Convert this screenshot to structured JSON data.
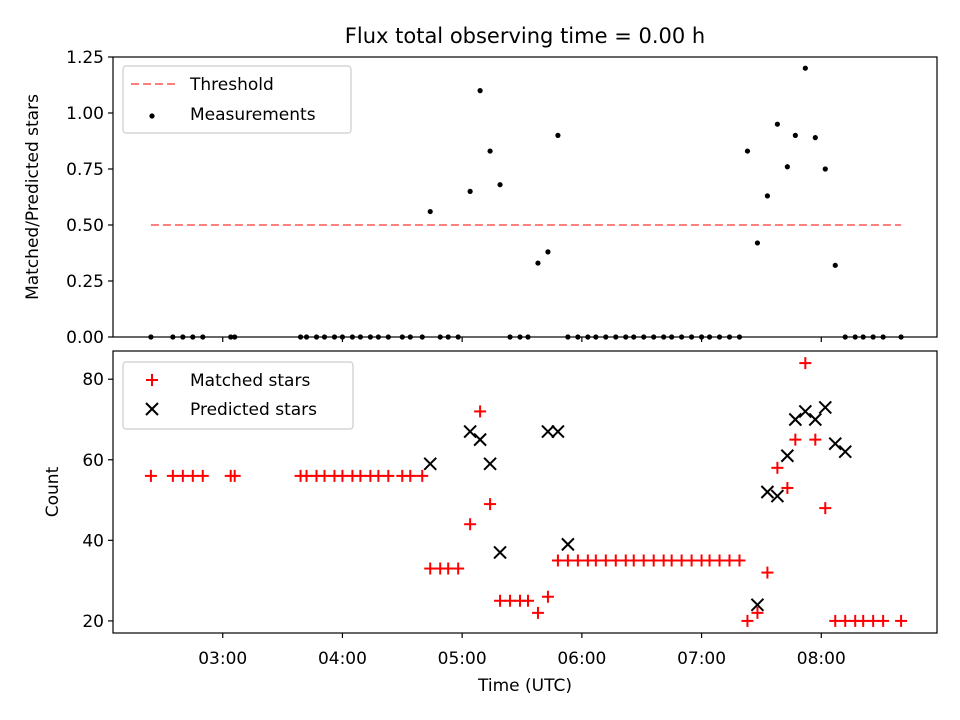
{
  "title": "Flux total observing time = 0.00 h",
  "xlabel": "Time (UTC)",
  "chart_data": [
    {
      "type": "scatter",
      "panel": "top",
      "title": "Flux total observing time = 0.00 h",
      "ylabel": "Matched/Predicted stars",
      "xlabel": "",
      "xlim": [
        "02:05",
        "08:58"
      ],
      "ylim": [
        0,
        1.25
      ],
      "y_ticks": [
        "0.00",
        "0.25",
        "0.50",
        "0.75",
        "1.00",
        "1.25"
      ],
      "legend_location": "upper-left",
      "threshold": {
        "name": "Threshold",
        "y": 0.5,
        "x_start": "02:24",
        "x_end": "08:40",
        "color": "#ff7f7f",
        "style": "dashed"
      },
      "series": [
        {
          "name": "Measurements",
          "color": "#000000",
          "marker": "dot",
          "x": [
            "02:24",
            "02:35",
            "02:40",
            "02:45",
            "02:50",
            "03:04",
            "03:06",
            "03:39",
            "03:42",
            "03:47",
            "03:51",
            "03:56",
            "04:00",
            "04:05",
            "04:09",
            "04:14",
            "04:18",
            "04:23",
            "04:30",
            "04:34",
            "04:40",
            "04:44",
            "04:49",
            "04:53",
            "04:58",
            "05:04",
            "05:09",
            "05:14",
            "05:19",
            "05:24",
            "05:29",
            "05:33",
            "05:38",
            "05:43",
            "05:48",
            "05:53",
            "05:58",
            "06:03",
            "06:07",
            "06:12",
            "06:17",
            "06:22",
            "06:26",
            "06:31",
            "06:36",
            "06:41",
            "06:45",
            "06:50",
            "06:55",
            "07:00",
            "07:04",
            "07:09",
            "07:14",
            "07:19",
            "07:23",
            "07:28",
            "07:33",
            "07:38",
            "07:43",
            "07:47",
            "07:52",
            "07:57",
            "08:02",
            "08:07",
            "08:12",
            "08:17",
            "08:21",
            "08:26",
            "08:31",
            "08:40"
          ],
          "y": [
            0,
            0,
            0,
            0,
            0,
            0,
            0,
            0,
            0,
            0,
            0,
            0,
            0,
            0,
            0,
            0,
            0,
            0,
            0,
            0,
            0,
            0.56,
            0,
            0,
            0,
            0.65,
            1.1,
            0.83,
            0.68,
            0,
            0,
            0,
            0.33,
            0.38,
            0.9,
            0,
            0,
            0,
            0,
            0,
            0,
            0,
            0,
            0,
            0,
            0,
            0,
            0,
            0,
            0,
            0,
            0,
            0,
            0,
            0.83,
            0.42,
            0.63,
            0.95,
            0.76,
            0.9,
            1.2,
            0.89,
            0.75,
            0.32,
            0,
            0,
            0,
            0,
            0,
            0
          ]
        }
      ]
    },
    {
      "type": "scatter",
      "panel": "bottom",
      "ylabel": "Count",
      "xlabel": "Time (UTC)",
      "xlim": [
        "02:05",
        "08:58"
      ],
      "ylim": [
        17,
        87
      ],
      "y_ticks": [
        "20",
        "40",
        "60",
        "80"
      ],
      "x_ticks": [
        "03:00",
        "04:00",
        "05:00",
        "06:00",
        "07:00",
        "08:00"
      ],
      "legend_location": "upper-left",
      "series": [
        {
          "name": "Matched stars",
          "color": "#ff0000",
          "marker": "plus",
          "x": [
            "02:24",
            "02:35",
            "02:40",
            "02:45",
            "02:50",
            "03:04",
            "03:06",
            "03:39",
            "03:42",
            "03:47",
            "03:51",
            "03:56",
            "04:00",
            "04:05",
            "04:09",
            "04:14",
            "04:18",
            "04:23",
            "04:30",
            "04:34",
            "04:40",
            "04:44",
            "04:49",
            "04:53",
            "04:58",
            "05:04",
            "05:09",
            "05:14",
            "05:19",
            "05:24",
            "05:29",
            "05:33",
            "05:38",
            "05:43",
            "05:48",
            "05:53",
            "05:58",
            "06:03",
            "06:07",
            "06:12",
            "06:17",
            "06:22",
            "06:26",
            "06:31",
            "06:36",
            "06:41",
            "06:45",
            "06:50",
            "06:55",
            "07:00",
            "07:04",
            "07:09",
            "07:14",
            "07:19",
            "07:23",
            "07:28",
            "07:33",
            "07:38",
            "07:43",
            "07:47",
            "07:52",
            "07:57",
            "08:02",
            "08:07",
            "08:12",
            "08:17",
            "08:21",
            "08:26",
            "08:31",
            "08:40"
          ],
          "y": [
            56,
            56,
            56,
            56,
            56,
            56,
            56,
            56,
            56,
            56,
            56,
            56,
            56,
            56,
            56,
            56,
            56,
            56,
            56,
            56,
            56,
            33,
            33,
            33,
            33,
            44,
            72,
            49,
            25,
            25,
            25,
            25,
            22,
            26,
            35,
            35,
            35,
            35,
            35,
            35,
            35,
            35,
            35,
            35,
            35,
            35,
            35,
            35,
            35,
            35,
            35,
            35,
            35,
            35,
            20,
            22,
            32,
            58,
            53,
            65,
            84,
            65,
            48,
            20,
            20,
            20,
            20,
            20,
            20,
            20
          ]
        },
        {
          "name": "Predicted stars",
          "color": "#000000",
          "marker": "x",
          "x": [
            "04:44",
            "05:04",
            "05:09",
            "05:14",
            "05:19",
            "05:43",
            "05:48",
            "05:53",
            "07:28",
            "07:33",
            "07:38",
            "07:43",
            "07:47",
            "07:52",
            "07:57",
            "08:02",
            "08:07",
            "08:12"
          ],
          "y": [
            59,
            67,
            65,
            59,
            37,
            67,
            67,
            39,
            24,
            52,
            51,
            61,
            70,
            72,
            70,
            73,
            64,
            62
          ]
        }
      ]
    }
  ]
}
